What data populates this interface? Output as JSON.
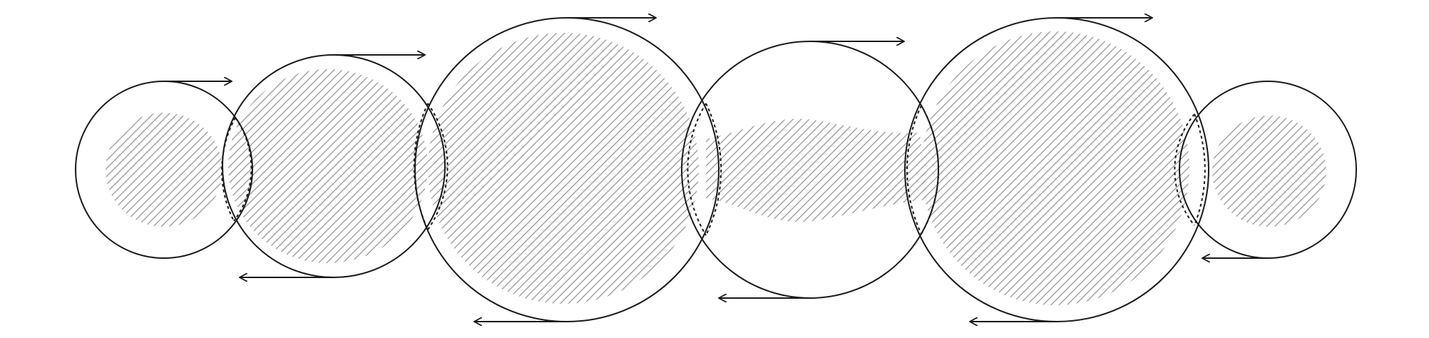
{
  "diagram": {
    "type": "overlapping-circles-with-rotation-arrows",
    "colors": {
      "outline": "#1a1a1a",
      "hatch": "#8c8c8c",
      "background": "#ffffff"
    },
    "circles": [
      {
        "id": 1,
        "size": "small",
        "upper_arrow_direction": "right",
        "lower_arrow_direction": "none",
        "hatched": "partial"
      },
      {
        "id": 2,
        "size": "medium",
        "upper_arrow_direction": "right",
        "lower_arrow_direction": "left",
        "hatched": "mostly"
      },
      {
        "id": 3,
        "size": "large",
        "upper_arrow_direction": "right",
        "lower_arrow_direction": "left",
        "hatched": "mostly"
      },
      {
        "id": 4,
        "size": "medium-large",
        "upper_arrow_direction": "right",
        "lower_arrow_direction": "left",
        "hatched": "band"
      },
      {
        "id": 5,
        "size": "large",
        "upper_arrow_direction": "right",
        "lower_arrow_direction": "left",
        "hatched": "mostly"
      },
      {
        "id": 6,
        "size": "small",
        "upper_arrow_direction": "none",
        "lower_arrow_direction": "left",
        "hatched": "partial"
      }
    ]
  }
}
